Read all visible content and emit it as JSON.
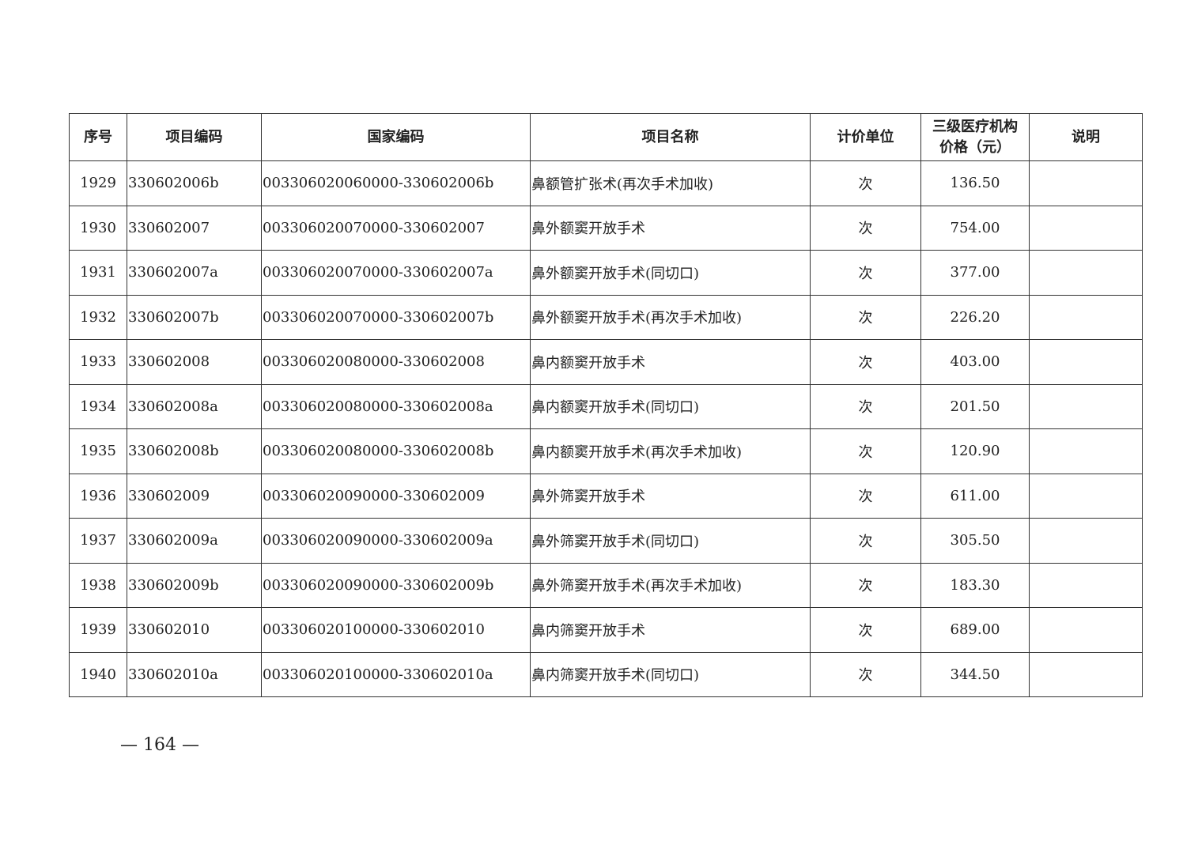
{
  "table": {
    "headers": [
      "序号",
      "项目编码",
      "国家编码",
      "项目名称",
      "计价单位",
      "三级医疗机构价格（元）",
      "说明"
    ],
    "header_price_line1": "三级医疗机构",
    "header_price_line2": "价格（元）",
    "rows": [
      [
        "1929",
        "330602006b",
        "003306020060000-330602006b",
        "鼻额管扩张术(再次手术加收)",
        "次",
        "136.50",
        ""
      ],
      [
        "1930",
        "330602007",
        "003306020070000-330602007",
        "鼻外额窦开放手术",
        "次",
        "754.00",
        ""
      ],
      [
        "1931",
        "330602007a",
        "003306020070000-330602007a",
        "鼻外额窦开放手术(同切口)",
        "次",
        "377.00",
        ""
      ],
      [
        "1932",
        "330602007b",
        "003306020070000-330602007b",
        "鼻外额窦开放手术(再次手术加收)",
        "次",
        "226.20",
        ""
      ],
      [
        "1933",
        "330602008",
        "003306020080000-330602008",
        "鼻内额窦开放手术",
        "次",
        "403.00",
        ""
      ],
      [
        "1934",
        "330602008a",
        "003306020080000-330602008a",
        "鼻内额窦开放手术(同切口)",
        "次",
        "201.50",
        ""
      ],
      [
        "1935",
        "330602008b",
        "003306020080000-330602008b",
        "鼻内额窦开放手术(再次手术加收)",
        "次",
        "120.90",
        ""
      ],
      [
        "1936",
        "330602009",
        "003306020090000-330602009",
        "鼻外筛窦开放手术",
        "次",
        "611.00",
        ""
      ],
      [
        "1937",
        "330602009a",
        "003306020090000-330602009a",
        "鼻外筛窦开放手术(同切口)",
        "次",
        "305.50",
        ""
      ],
      [
        "1938",
        "330602009b",
        "003306020090000-330602009b",
        "鼻外筛窦开放手术(再次手术加收)",
        "次",
        "183.30",
        ""
      ],
      [
        "1939",
        "330602010",
        "003306020100000-330602010",
        "鼻内筛窦开放手术",
        "次",
        "689.00",
        ""
      ],
      [
        "1940",
        "330602010a",
        "003306020100000-330602010a",
        "鼻内筛窦开放手术(同切口)",
        "次",
        "344.50",
        ""
      ]
    ]
  },
  "footer": {
    "page_number": "— 164 —"
  }
}
